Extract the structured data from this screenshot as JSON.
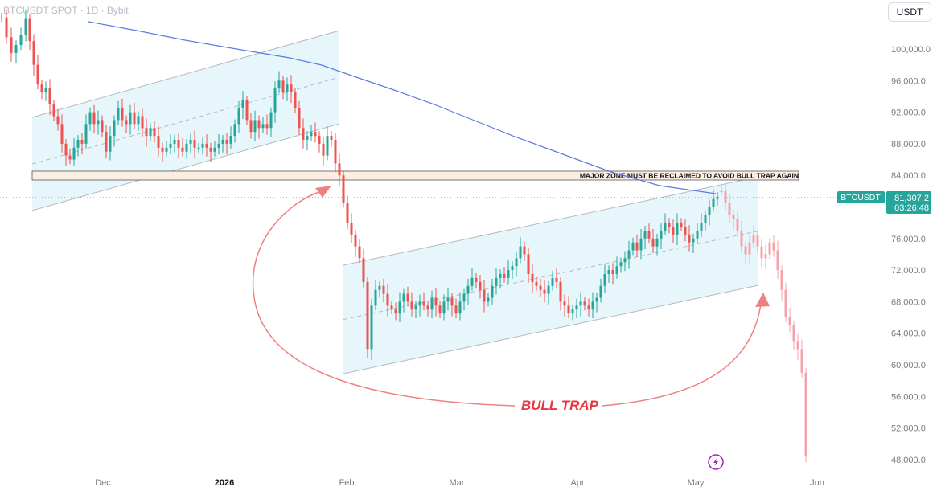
{
  "header": {
    "symbol_text": "BTCUSDT SPOT · 1D · Bybit",
    "currency_button": "USDT"
  },
  "price_label": {
    "symbol": "BTCUSDT",
    "price": "81,307.2",
    "countdown": "03:26:48"
  },
  "annotations": {
    "zone_text": "MAJOR ZONE MUST BE RECLAIMED TO AVOID BULL TRAP AGAIN",
    "bull_trap": "BULL TRAP"
  },
  "colors": {
    "up": "#26a69a",
    "down": "#ef5350",
    "ma": "#5b7be0",
    "channel_fill": "#e6f6fb",
    "zone_fill": "#fdeee2",
    "arrow": "#f08080",
    "projection": "#f4a3a8",
    "price_tag": "#26a69a",
    "bull_trap_text": "#e8353f"
  },
  "icons": {
    "lightning": "lightning-icon"
  },
  "chart_data": {
    "type": "candlestick",
    "x_axis": {
      "ticks": [
        "Dec",
        "2026",
        "Feb",
        "Mar",
        "Apr",
        "May",
        "Jun"
      ]
    },
    "y_axis": {
      "range": [
        46000,
        106500
      ],
      "ticks": [
        "100,000.0",
        "96,000.0",
        "92,000.0",
        "88,000.0",
        "84,000.0",
        "80,000.0",
        "76,000.0",
        "72,000.0",
        "68,000.0",
        "64,000.0",
        "60,000.0",
        "56,000.0",
        "52,000.0",
        "48,000.0"
      ]
    },
    "last_price": 81307.2,
    "series": [
      {
        "name": "BTCUSDT",
        "type": "candles",
        "points": [
          [
            0,
            104000
          ],
          [
            6,
            101500
          ],
          [
            12,
            99500
          ],
          [
            18,
            100500
          ],
          [
            24,
            101800
          ],
          [
            30,
            103800
          ],
          [
            35,
            101000
          ],
          [
            40,
            98000
          ],
          [
            45,
            95500
          ],
          [
            50,
            94500
          ],
          [
            55,
            95000
          ],
          [
            60,
            93000
          ],
          [
            65,
            91500
          ],
          [
            70,
            90500
          ],
          [
            75,
            88000
          ],
          [
            80,
            86500
          ],
          [
            85,
            86000
          ],
          [
            90,
            87500
          ],
          [
            95,
            88500
          ],
          [
            100,
            88000
          ],
          [
            105,
            90500
          ],
          [
            110,
            92000
          ],
          [
            115,
            90500
          ],
          [
            120,
            91000
          ],
          [
            125,
            89500
          ],
          [
            130,
            87000
          ],
          [
            135,
            89000
          ],
          [
            140,
            91000
          ],
          [
            145,
            92500
          ],
          [
            150,
            91000
          ],
          [
            155,
            90500
          ],
          [
            160,
            92000
          ],
          [
            165,
            90500
          ],
          [
            170,
            91500
          ],
          [
            175,
            90000
          ],
          [
            180,
            89000
          ],
          [
            185,
            90000
          ],
          [
            190,
            89000
          ],
          [
            195,
            87500
          ],
          [
            200,
            87000
          ],
          [
            205,
            87500
          ],
          [
            210,
            88000
          ],
          [
            215,
            88500
          ],
          [
            220,
            87500
          ],
          [
            225,
            87000
          ],
          [
            230,
            88000
          ],
          [
            235,
            88500
          ],
          [
            240,
            87500
          ],
          [
            245,
            87500
          ],
          [
            250,
            88000
          ],
          [
            255,
            87500
          ],
          [
            260,
            87000
          ],
          [
            265,
            87500
          ],
          [
            270,
            88000
          ],
          [
            275,
            88500
          ],
          [
            280,
            88000
          ],
          [
            285,
            89000
          ],
          [
            290,
            90500
          ],
          [
            295,
            92500
          ],
          [
            300,
            93500
          ],
          [
            305,
            91000
          ],
          [
            310,
            89500
          ],
          [
            315,
            91000
          ],
          [
            320,
            90000
          ],
          [
            325,
            90500
          ],
          [
            330,
            90000
          ],
          [
            335,
            92000
          ],
          [
            340,
            95000
          ],
          [
            345,
            96000
          ],
          [
            350,
            94500
          ],
          [
            355,
            95500
          ],
          [
            360,
            94500
          ],
          [
            365,
            92500
          ],
          [
            370,
            90000
          ],
          [
            375,
            88500
          ],
          [
            380,
            89000
          ],
          [
            385,
            89500
          ],
          [
            390,
            89000
          ],
          [
            395,
            88000
          ],
          [
            400,
            86500
          ],
          [
            405,
            89000
          ],
          [
            410,
            88500
          ],
          [
            415,
            85500
          ],
          [
            420,
            84000
          ],
          [
            425,
            80500
          ],
          [
            430,
            78000
          ],
          [
            435,
            76500
          ],
          [
            440,
            75000
          ],
          [
            445,
            73500
          ],
          [
            450,
            70500
          ],
          [
            455,
            62000
          ],
          [
            460,
            67500
          ],
          [
            465,
            69500
          ],
          [
            470,
            70000
          ],
          [
            475,
            69000
          ],
          [
            480,
            67500
          ],
          [
            485,
            67000
          ],
          [
            490,
            66500
          ],
          [
            495,
            68000
          ],
          [
            500,
            69000
          ],
          [
            505,
            68000
          ],
          [
            510,
            67000
          ],
          [
            515,
            67500
          ],
          [
            520,
            68000
          ],
          [
            525,
            67500
          ],
          [
            530,
            67000
          ],
          [
            535,
            68500
          ],
          [
            540,
            67500
          ],
          [
            545,
            66500
          ],
          [
            550,
            68000
          ],
          [
            555,
            68500
          ],
          [
            560,
            67500
          ],
          [
            565,
            66500
          ],
          [
            570,
            68000
          ],
          [
            575,
            69000
          ],
          [
            580,
            70000
          ],
          [
            585,
            71000
          ],
          [
            590,
            70500
          ],
          [
            595,
            69500
          ],
          [
            600,
            68000
          ],
          [
            605,
            68500
          ],
          [
            610,
            70000
          ],
          [
            615,
            71000
          ],
          [
            620,
            71500
          ],
          [
            625,
            71000
          ],
          [
            630,
            72000
          ],
          [
            635,
            72500
          ],
          [
            640,
            73500
          ],
          [
            645,
            75000
          ],
          [
            650,
            74000
          ],
          [
            655,
            71500
          ],
          [
            660,
            70500
          ],
          [
            665,
            70000
          ],
          [
            670,
            69500
          ],
          [
            675,
            69000
          ],
          [
            680,
            70000
          ],
          [
            685,
            71000
          ],
          [
            690,
            70500
          ],
          [
            695,
            68000
          ],
          [
            700,
            67500
          ],
          [
            705,
            66500
          ],
          [
            710,
            67000
          ],
          [
            715,
            67500
          ],
          [
            720,
            68000
          ],
          [
            725,
            67500
          ],
          [
            730,
            67000
          ],
          [
            735,
            68000
          ],
          [
            740,
            68500
          ],
          [
            745,
            70000
          ],
          [
            750,
            71500
          ],
          [
            755,
            72000
          ],
          [
            760,
            71500
          ],
          [
            765,
            72500
          ],
          [
            770,
            73000
          ],
          [
            775,
            73500
          ],
          [
            780,
            74500
          ],
          [
            785,
            75500
          ],
          [
            790,
            74500
          ],
          [
            795,
            76000
          ],
          [
            800,
            77000
          ],
          [
            805,
            76000
          ],
          [
            810,
            75000
          ],
          [
            815,
            76000
          ],
          [
            820,
            77000
          ],
          [
            825,
            78000
          ],
          [
            830,
            77500
          ],
          [
            835,
            76500
          ],
          [
            840,
            78000
          ],
          [
            845,
            77500
          ],
          [
            850,
            76500
          ],
          [
            855,
            75500
          ],
          [
            860,
            76000
          ],
          [
            865,
            77000
          ],
          [
            870,
            78000
          ],
          [
            875,
            79000
          ],
          [
            880,
            80000
          ],
          [
            885,
            81000
          ],
          [
            890,
            81300
          ]
        ]
      },
      {
        "name": "Projection",
        "type": "candles_faded",
        "points": [
          [
            895,
            82000
          ],
          [
            900,
            80500
          ],
          [
            905,
            79000
          ],
          [
            910,
            78500
          ],
          [
            915,
            77000
          ],
          [
            920,
            75000
          ],
          [
            925,
            74000
          ],
          [
            930,
            75500
          ],
          [
            935,
            76500
          ],
          [
            940,
            75000
          ],
          [
            945,
            73500
          ],
          [
            950,
            74000
          ],
          [
            955,
            75500
          ],
          [
            960,
            74500
          ],
          [
            965,
            72000
          ],
          [
            970,
            69500
          ],
          [
            975,
            66000
          ],
          [
            980,
            65000
          ],
          [
            985,
            63000
          ],
          [
            990,
            62000
          ],
          [
            995,
            59000
          ],
          [
            1000,
            48500
          ]
        ]
      }
    ]
  }
}
